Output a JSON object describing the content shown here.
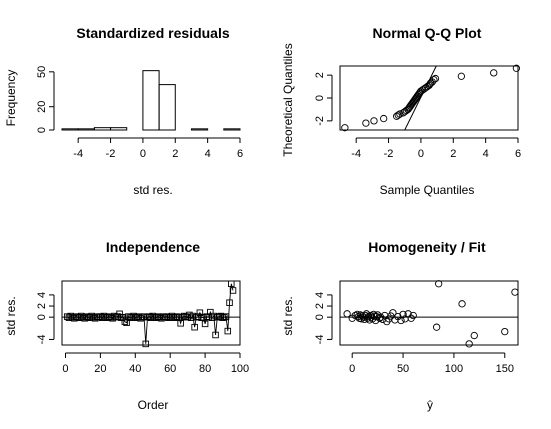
{
  "chart_data": [
    {
      "id": "hist",
      "type": "bar",
      "title": "Standardized residuals",
      "xlabel": "std res.",
      "ylabel": "Frequency",
      "xlim": [
        -5,
        6
      ],
      "ylim": [
        0,
        55
      ],
      "xticks": [
        -4,
        -2,
        0,
        2,
        4,
        6
      ],
      "yticks": [
        0,
        20,
        50
      ],
      "bin_edges": [
        -5,
        -4,
        -3,
        -2,
        -1,
        0,
        1,
        2,
        3,
        4,
        5,
        6
      ],
      "values": [
        1,
        1,
        2,
        2,
        0,
        51,
        39,
        0,
        1,
        0,
        1,
        1
      ]
    },
    {
      "id": "qq",
      "type": "scatter",
      "title": "Normal Q-Q Plot",
      "xlabel": "Sample Quantiles",
      "ylabel": "Theoretical Quantiles",
      "xlim": [
        -5,
        6
      ],
      "ylim": [
        -2.8,
        2.8
      ],
      "xticks": [
        -4,
        -2,
        0,
        2,
        4,
        6
      ],
      "yticks": [
        -2,
        0,
        2
      ],
      "points": [
        [
          -4.7,
          -2.6
        ],
        [
          -3.4,
          -2.2
        ],
        [
          -2.9,
          -2.0
        ],
        [
          -2.3,
          -1.8
        ],
        [
          -1.5,
          -1.6
        ],
        [
          -1.4,
          -1.5
        ],
        [
          -1.3,
          -1.4
        ],
        [
          -1.1,
          -1.3
        ],
        [
          -1.0,
          -1.2
        ],
        [
          -0.9,
          -1.1
        ],
        [
          -0.8,
          -1.0
        ],
        [
          -0.75,
          -0.9
        ],
        [
          -0.7,
          -0.8
        ],
        [
          -0.65,
          -0.7
        ],
        [
          -0.6,
          -0.6
        ],
        [
          -0.55,
          -0.5
        ],
        [
          -0.5,
          -0.4
        ],
        [
          -0.45,
          -0.3
        ],
        [
          -0.4,
          -0.2
        ],
        [
          -0.35,
          -0.1
        ],
        [
          -0.3,
          0.0
        ],
        [
          -0.25,
          0.1
        ],
        [
          -0.2,
          0.2
        ],
        [
          -0.15,
          0.3
        ],
        [
          -0.1,
          0.4
        ],
        [
          -0.05,
          0.5
        ],
        [
          0.0,
          0.6
        ],
        [
          0.1,
          0.7
        ],
        [
          0.2,
          0.8
        ],
        [
          0.3,
          0.9
        ],
        [
          0.4,
          1.0
        ],
        [
          0.5,
          1.1
        ],
        [
          0.55,
          1.2
        ],
        [
          0.6,
          1.3
        ],
        [
          0.7,
          1.4
        ],
        [
          0.8,
          1.6
        ],
        [
          0.9,
          1.7
        ],
        [
          2.5,
          1.9
        ],
        [
          4.5,
          2.2
        ],
        [
          5.9,
          2.6
        ]
      ],
      "reference_line": [
        [
          -1.0,
          -2.8
        ],
        [
          0.95,
          2.8
        ]
      ]
    },
    {
      "id": "indep",
      "type": "line",
      "title": "Independence",
      "xlabel": "Order",
      "ylabel": "std res.",
      "xlim": [
        -2,
        100
      ],
      "ylim": [
        -5,
        6.5
      ],
      "xticks": [
        0,
        20,
        40,
        60,
        80,
        100
      ],
      "yticks": [
        -4,
        0,
        2,
        4
      ],
      "hline": 0,
      "y": [
        0.1,
        -0.1,
        0.2,
        0.0,
        -0.2,
        0.1,
        0.0,
        -0.1,
        0.2,
        0.0,
        -0.2,
        0.1,
        0.0,
        -0.1,
        0.2,
        0.0,
        -0.2,
        0.1,
        0.0,
        0.1,
        -0.1,
        0.2,
        0.0,
        -0.1,
        0.1,
        0.0,
        -0.2,
        0.2,
        0.0,
        0.1,
        0.6,
        -0.1,
        0.0,
        -0.8,
        -1.0,
        0.1,
        -0.1,
        0.0,
        0.2,
        -0.1,
        0.0,
        0.1,
        -0.2,
        0.0,
        0.1,
        -4.8,
        0.0,
        0.1,
        -0.1,
        0.2,
        0.0,
        -0.1,
        0.1,
        0.0,
        -0.2,
        0.1,
        0.0,
        0.1,
        -0.1,
        0.0,
        0.2,
        -0.1,
        0.0,
        0.1,
        -0.1,
        -1.1,
        0.0,
        0.2,
        0.1,
        0.0,
        0.4,
        -0.1,
        0.2,
        -1.8,
        0.0,
        0.1,
        0.8,
        -0.1,
        0.0,
        -1.2,
        0.1,
        0.0,
        0.9,
        -0.1,
        0.2,
        -3.2,
        0.0,
        0.1,
        0.2,
        -0.1,
        0.0,
        0.1,
        -2.5,
        2.6,
        6.0,
        4.8
      ]
    },
    {
      "id": "homog",
      "type": "scatter",
      "title": "Homogeneity / Fit",
      "xlabel": "ŷ",
      "ylabel": "std res.",
      "xlim": [
        -12,
        163
      ],
      "ylim": [
        -5,
        6.5
      ],
      "xticks": [
        0,
        50,
        100,
        150
      ],
      "yticks": [
        -4,
        0,
        2,
        4
      ],
      "hline": 0,
      "points": [
        [
          -5,
          0.6
        ],
        [
          0,
          -0.2
        ],
        [
          3,
          0.3
        ],
        [
          5,
          0.5
        ],
        [
          6,
          0.1
        ],
        [
          7,
          -0.2
        ],
        [
          8,
          0.4
        ],
        [
          9,
          -0.3
        ],
        [
          10,
          0.2
        ],
        [
          11,
          0.0
        ],
        [
          12,
          -0.4
        ],
        [
          13,
          0.3
        ],
        [
          14,
          0.6
        ],
        [
          15,
          -0.2
        ],
        [
          16,
          0.1
        ],
        [
          17,
          -0.5
        ],
        [
          18,
          0.3
        ],
        [
          19,
          0.0
        ],
        [
          20,
          -0.3
        ],
        [
          21,
          0.5
        ],
        [
          22,
          0.2
        ],
        [
          23,
          -0.6
        ],
        [
          24,
          0.1
        ],
        [
          25,
          0.4
        ],
        [
          27,
          -0.2
        ],
        [
          28,
          0.0
        ],
        [
          30,
          -0.4
        ],
        [
          32,
          0.3
        ],
        [
          34,
          -0.8
        ],
        [
          36,
          -0.3
        ],
        [
          38,
          0.2
        ],
        [
          40,
          0.8
        ],
        [
          42,
          -0.5
        ],
        [
          45,
          0.1
        ],
        [
          48,
          -0.6
        ],
        [
          50,
          0.5
        ],
        [
          52,
          -0.3
        ],
        [
          55,
          0.6
        ],
        [
          58,
          -0.2
        ],
        [
          60,
          0.3
        ],
        [
          85,
          6.0
        ],
        [
          83,
          -1.8
        ],
        [
          108,
          2.4
        ],
        [
          115,
          -4.8
        ],
        [
          120,
          -3.3
        ],
        [
          150,
          -2.6
        ],
        [
          160,
          4.5
        ]
      ]
    }
  ]
}
